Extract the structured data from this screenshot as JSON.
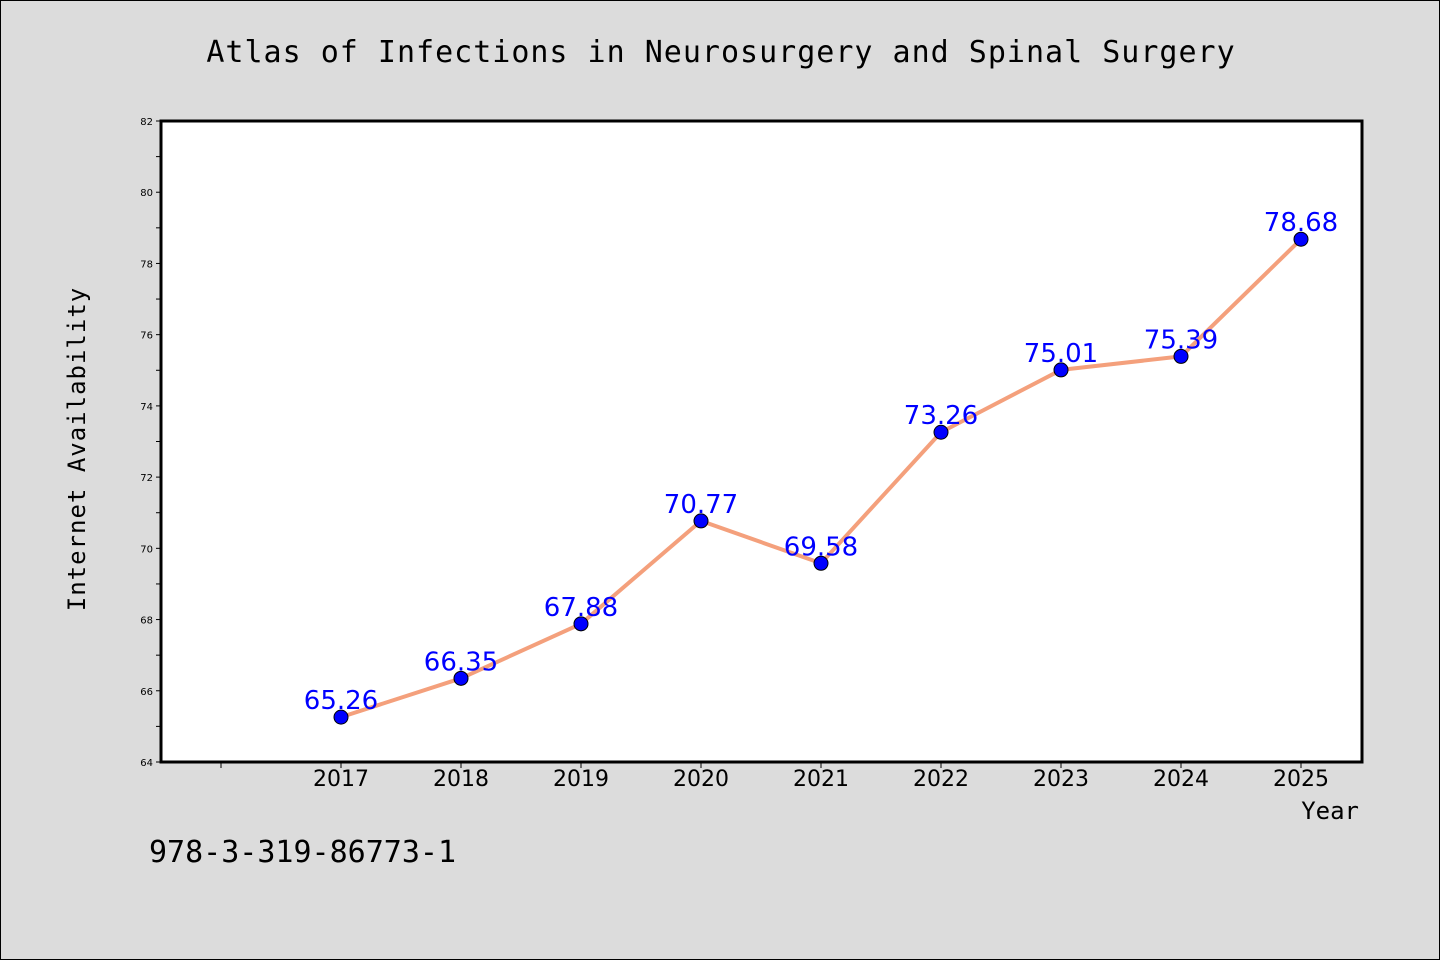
{
  "chart_data": {
    "type": "line",
    "title": "Atlas of Infections in Neurosurgery and Spinal Surgery",
    "xlabel": "Year",
    "ylabel": "Internet Availability",
    "categories": [
      "2017",
      "2018",
      "2019",
      "2020",
      "2021",
      "2022",
      "2023",
      "2024",
      "2025"
    ],
    "series": [
      {
        "values": [
          65.26,
          66.35,
          67.88,
          70.77,
          69.58,
          73.26,
          75.01,
          75.39,
          78.68
        ],
        "data_labels": [
          "65.26",
          "66.35",
          "67.88",
          "70.77",
          "69.58",
          "73.26",
          "75.01",
          "75.39",
          "78.68"
        ]
      }
    ],
    "ylim": [
      64,
      82
    ],
    "yticks": [
      "64",
      "66",
      "68",
      "70",
      "72",
      "74",
      "76",
      "78",
      "80",
      "82"
    ],
    "grid": false,
    "colors": {
      "line": "#f4a07c",
      "marker": "#0000ff",
      "data_label": "#0000ff",
      "background": "#dcdcdc"
    }
  },
  "footer": {
    "isbn": "978-3-319-86773-1"
  }
}
